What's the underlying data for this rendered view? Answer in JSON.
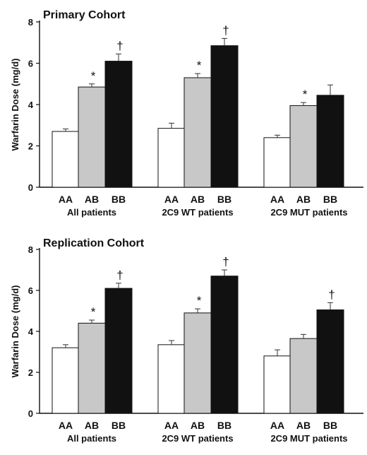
{
  "chart_data": [
    {
      "type": "bar",
      "title": "Primary Cohort",
      "ylabel": "Warfarin Dose (mg/d)",
      "ylim": [
        0,
        8
      ],
      "yticks": [
        0,
        2,
        4,
        6,
        8
      ],
      "groups": [
        {
          "label": "All patients",
          "categories": [
            "AA",
            "AB",
            "BB"
          ],
          "values": [
            2.7,
            4.85,
            6.1
          ],
          "errors": [
            0.12,
            0.15,
            0.35
          ],
          "marks": [
            "",
            "*",
            "†"
          ]
        },
        {
          "label": "2C9 WT patients",
          "categories": [
            "AA",
            "AB",
            "BB"
          ],
          "values": [
            2.85,
            5.3,
            6.85
          ],
          "errors": [
            0.25,
            0.2,
            0.35
          ],
          "marks": [
            "",
            "*",
            "†"
          ]
        },
        {
          "label": "2C9 MUT patients",
          "categories": [
            "AA",
            "AB",
            "BB"
          ],
          "values": [
            2.4,
            3.95,
            4.45
          ],
          "errors": [
            0.12,
            0.15,
            0.5
          ],
          "marks": [
            "",
            "*",
            ""
          ]
        }
      ],
      "colors": [
        "#ffffff",
        "#c8c8c8",
        "#111111"
      ]
    },
    {
      "type": "bar",
      "title": "Replication Cohort",
      "ylabel": "Warfarin Dose (mg/d)",
      "ylim": [
        0,
        8
      ],
      "yticks": [
        0,
        2,
        4,
        6,
        8
      ],
      "groups": [
        {
          "label": "All patients",
          "categories": [
            "AA",
            "AB",
            "BB"
          ],
          "values": [
            3.2,
            4.4,
            6.1
          ],
          "errors": [
            0.15,
            0.15,
            0.25
          ],
          "marks": [
            "",
            "*",
            "†"
          ]
        },
        {
          "label": "2C9 WT patients",
          "categories": [
            "AA",
            "AB",
            "BB"
          ],
          "values": [
            3.35,
            4.9,
            6.7
          ],
          "errors": [
            0.2,
            0.2,
            0.3
          ],
          "marks": [
            "",
            "*",
            "†"
          ]
        },
        {
          "label": "2C9 MUT patients",
          "categories": [
            "AA",
            "AB",
            "BB"
          ],
          "values": [
            2.8,
            3.65,
            5.05
          ],
          "errors": [
            0.3,
            0.2,
            0.35
          ],
          "marks": [
            "",
            "",
            "†"
          ]
        }
      ],
      "colors": [
        "#ffffff",
        "#c8c8c8",
        "#111111"
      ]
    }
  ]
}
